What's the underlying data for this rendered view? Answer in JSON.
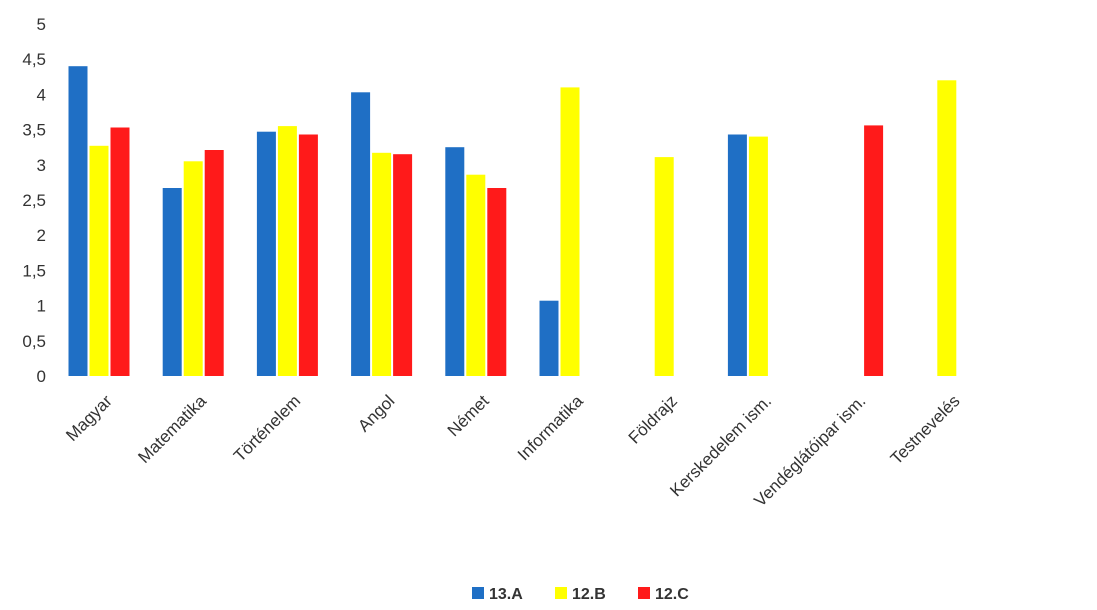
{
  "chart_data": {
    "type": "bar",
    "categories": [
      "Magyar",
      "Matematika",
      "Történelem",
      "Angol",
      "Német",
      "Informatika",
      "Földrajz",
      "Kerskedelem ism.",
      "Vendéglátóipar ism.",
      "Testnevelés"
    ],
    "series": [
      {
        "name": "13.A",
        "color": "#1f6fc5",
        "values": [
          4.4,
          2.67,
          3.47,
          4.03,
          3.25,
          1.07,
          null,
          3.43,
          null,
          null
        ]
      },
      {
        "name": "12.B",
        "color": "#ffff00",
        "values": [
          3.27,
          3.05,
          3.55,
          3.17,
          2.86,
          4.1,
          3.11,
          3.4,
          null,
          4.2
        ]
      },
      {
        "name": "12.C",
        "color": "#ff1a1a",
        "values": [
          3.53,
          3.21,
          3.43,
          3.15,
          2.67,
          null,
          null,
          null,
          3.56,
          null
        ]
      }
    ],
    "y_ticks": [
      "0",
      "0,5",
      "1",
      "1,5",
      "2",
      "2,5",
      "3",
      "3,5",
      "4",
      "4,5",
      "5"
    ],
    "ylim": [
      0,
      5
    ],
    "title": "",
    "xlabel": "",
    "ylabel": "",
    "grid": false,
    "legend_position": "bottom"
  }
}
